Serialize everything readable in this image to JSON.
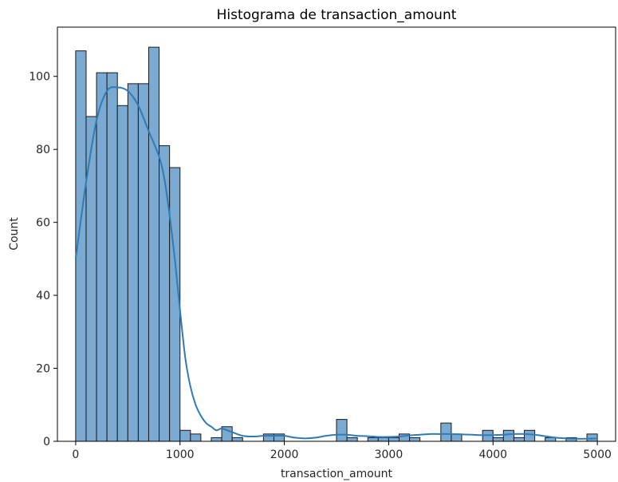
{
  "chart_data": {
    "type": "bar",
    "title": "Histograma de transaction_amount",
    "xlabel": "transaction_amount",
    "ylabel": "Count",
    "xlim": [
      -175,
      5175
    ],
    "ylim": [
      0,
      113.5
    ],
    "xticks": [
      0,
      1000,
      2000,
      3000,
      4000,
      5000
    ],
    "xtick_labels": [
      "0",
      "1000",
      "2000",
      "3000",
      "4000",
      "5000"
    ],
    "yticks": [
      0,
      20,
      40,
      60,
      80,
      100
    ],
    "ytick_labels": [
      "0",
      "20",
      "40",
      "60",
      "80",
      "100"
    ],
    "grid": false,
    "bin_edges": [
      0,
      100,
      200,
      300,
      400,
      500,
      600,
      700,
      800,
      900,
      1000,
      1100,
      1200,
      1300,
      1400,
      1500,
      1600,
      1700,
      1800,
      1900,
      2000,
      2100,
      2200,
      2300,
      2400,
      2500,
      2600,
      2700,
      2800,
      2900,
      3000,
      3100,
      3200,
      3300,
      3400,
      3500,
      3600,
      3700,
      3800,
      3900,
      4000,
      4100,
      4200,
      4300,
      4400,
      4500,
      4600,
      4700,
      4800,
      4900,
      5000
    ],
    "counts": [
      107,
      89,
      101,
      101,
      92,
      98,
      98,
      108,
      81,
      75,
      3,
      2,
      0,
      1,
      4,
      1,
      0,
      0,
      2,
      2,
      0,
      0,
      0,
      0,
      0,
      6,
      1,
      0,
      1,
      1,
      1,
      2,
      1,
      0,
      0,
      5,
      2,
      0,
      0,
      3,
      1,
      3,
      1,
      3,
      0,
      1,
      0,
      1,
      0,
      2
    ],
    "kde": {
      "x": [
        0,
        100,
        200,
        300,
        400,
        500,
        600,
        700,
        800,
        850,
        900,
        950,
        1000,
        1050,
        1100,
        1150,
        1200,
        1250,
        1300,
        1350,
        1400,
        1500,
        1600,
        1700,
        1800,
        1900,
        2000,
        2100,
        2200,
        2300,
        2400,
        2500,
        2600,
        2700,
        2800,
        2900,
        3000,
        3100,
        3200,
        3300,
        3400,
        3500,
        3600,
        3700,
        3800,
        3900,
        4000,
        4100,
        4200,
        4300,
        4400,
        4500,
        4600,
        4700,
        4800,
        4900,
        5000
      ],
      "y": [
        50,
        71,
        88,
        96,
        97,
        96,
        92,
        85,
        78,
        72,
        62,
        50,
        36,
        23,
        15,
        10,
        7,
        5,
        4,
        3,
        3.5,
        2.5,
        1.5,
        1.3,
        1.5,
        1.5,
        1.5,
        1,
        0.8,
        1,
        1.5,
        1.8,
        1.8,
        1.5,
        1.4,
        1.2,
        1.2,
        1.3,
        1.6,
        1.8,
        2,
        2,
        2,
        1.9,
        1.8,
        1.7,
        1.7,
        1.8,
        2,
        2,
        1.8,
        1.4,
        1,
        0.8,
        0.7,
        0.7,
        0.8
      ]
    },
    "colors": {
      "bar_fill": "#7aa9d1",
      "bar_edge": "#1a1a1a",
      "kde_line": "#2f7bb5",
      "axis": "#000000"
    }
  }
}
